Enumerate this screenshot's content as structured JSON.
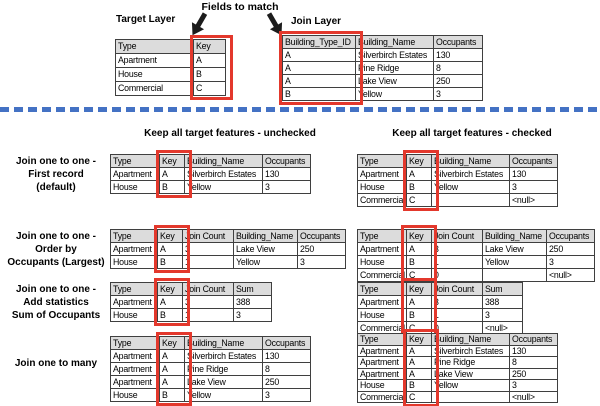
{
  "colors": {
    "red": "#e3382c",
    "blue": "#4472c4",
    "headerbg": "#dcdcdc"
  },
  "top": {
    "fields_to_match": "Fields to match",
    "target_layer_label": "Target Layer",
    "join_layer_label": "Join Layer"
  },
  "section_headers": {
    "unchecked": "Keep all target features - unchecked",
    "checked": "Keep all target features - checked"
  },
  "row_labels": {
    "one_to_one_first": "Join one to one -\nFirst record\n(default)",
    "one_to_one_order": "Join one to one -\nOrder by\nOccupants (Largest)",
    "one_to_one_stats": "Join one to one -\nAdd statistics\nSum of Occupants",
    "one_to_many": "Join one to many"
  },
  "tables": {
    "target": {
      "columns": [
        "Type",
        "Key"
      ],
      "rows": [
        [
          "Apartment",
          "A"
        ],
        [
          "House",
          "B"
        ],
        [
          "Commercial",
          "C"
        ]
      ],
      "highlight_col": 1
    },
    "join": {
      "columns": [
        "Building_Type_ID",
        "Building_Name",
        "Occupants"
      ],
      "rows": [
        [
          "A",
          "Silverbirch Estates",
          "130"
        ],
        [
          "A",
          "Pine Ridge",
          "8"
        ],
        [
          "A",
          "Lake View",
          "250"
        ],
        [
          "B",
          "Yellow",
          "3"
        ]
      ],
      "highlight_col": 0
    },
    "r1_unchecked": {
      "columns": [
        "Type",
        "Key",
        "Building_Name",
        "Occupants"
      ],
      "rows": [
        [
          "Apartment",
          "A",
          "Silverbirch Estates",
          "130"
        ],
        [
          "House",
          "B",
          "Yellow",
          "3"
        ]
      ],
      "highlight_col": 1
    },
    "r1_checked": {
      "columns": [
        "Type",
        "Key",
        "Building_Name",
        "Occupants"
      ],
      "rows": [
        [
          "Apartment",
          "A",
          "Silverbirch Estates",
          "130"
        ],
        [
          "House",
          "B",
          "Yellow",
          "3"
        ],
        [
          "Commercial",
          "C",
          "",
          "<null>"
        ]
      ],
      "highlight_col": 1
    },
    "r2_unchecked": {
      "columns": [
        "Type",
        "Key",
        "Join Count",
        "Building_Name",
        "Occupants"
      ],
      "rows": [
        [
          "Apartment",
          "A",
          "3",
          "Lake View",
          "250"
        ],
        [
          "House",
          "B",
          "1",
          "Yellow",
          "3"
        ]
      ],
      "highlight_col": 1
    },
    "r2_checked": {
      "columns": [
        "Type",
        "Key",
        "Join Count",
        "Building_Name",
        "Occupants"
      ],
      "rows": [
        [
          "Apartment",
          "A",
          "3",
          "Lake View",
          "250"
        ],
        [
          "House",
          "B",
          "1",
          "Yellow",
          "3"
        ],
        [
          "Commercial",
          "C",
          "0",
          "",
          "<null>"
        ]
      ],
      "highlight_col": 1
    },
    "r3_unchecked": {
      "columns": [
        "Type",
        "Key",
        "Join Count",
        "Sum"
      ],
      "rows": [
        [
          "Apartment",
          "A",
          "3",
          "388"
        ],
        [
          "House",
          "B",
          "1",
          "3"
        ]
      ],
      "highlight_col": 1
    },
    "r3_checked": {
      "columns": [
        "Type",
        "Key",
        "Join Count",
        "Sum"
      ],
      "rows": [
        [
          "Apartment",
          "A",
          "3",
          "388"
        ],
        [
          "House",
          "B",
          "1",
          "3"
        ],
        [
          "Commercial",
          "C",
          "0",
          "<null>"
        ]
      ],
      "highlight_col": 1
    },
    "r4_unchecked": {
      "columns": [
        "Type",
        "Key",
        "Building_Name",
        "Occupants"
      ],
      "rows": [
        [
          "Apartment",
          "A",
          "Silverbirch Estates",
          "130"
        ],
        [
          "Apartment",
          "A",
          "Pine Ridge",
          "8"
        ],
        [
          "Apartment",
          "A",
          "Lake View",
          "250"
        ],
        [
          "House",
          "B",
          "Yellow",
          "3"
        ]
      ],
      "highlight_col": 1
    },
    "r4_checked": {
      "columns": [
        "Type",
        "Key",
        "Building_Name",
        "Occupants"
      ],
      "rows": [
        [
          "Apartment",
          "A",
          "Silverbirch Estates",
          "130"
        ],
        [
          "Apartment",
          "A",
          "Pine Ridge",
          "8"
        ],
        [
          "Apartment",
          "A",
          "Lake View",
          "250"
        ],
        [
          "House",
          "B",
          "Yellow",
          "3"
        ],
        [
          "Commercial",
          "C",
          "",
          "<null>"
        ]
      ],
      "highlight_col": 1
    }
  }
}
